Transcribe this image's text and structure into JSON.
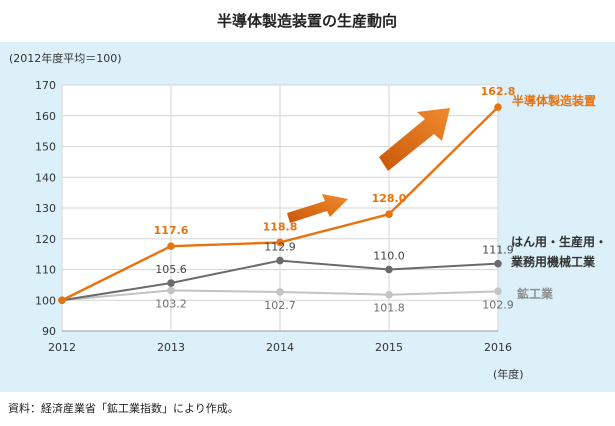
{
  "chart_data": {
    "type": "line",
    "title": "半導体製造装置の生産動向",
    "unit_note": "(2012年度平均＝100)",
    "xlabel_unit": "(年度)",
    "x": [
      "2012",
      "2013",
      "2014",
      "2015",
      "2016"
    ],
    "y_ticks": [
      "90",
      "100",
      "110",
      "120",
      "130",
      "140",
      "150",
      "160",
      "170"
    ],
    "ylim": [
      90,
      170
    ],
    "grid": true,
    "series": [
      {
        "name": "半導体製造装置",
        "color": "#e8730f",
        "values": [
          100,
          117.6,
          118.8,
          128.0,
          162.8
        ],
        "labels": [
          "",
          "117.6",
          "118.8",
          "128.0",
          "162.8"
        ]
      },
      {
        "name_lines": [
          "はん用・生産用・",
          "業務用機械工業"
        ],
        "color": "#6b6b6b",
        "values": [
          100,
          105.6,
          112.9,
          110.0,
          111.9
        ],
        "labels": [
          "",
          "105.6",
          "112.9",
          "110.0",
          "111.9"
        ]
      },
      {
        "name": "鉱工業",
        "color": "#c3c3c3",
        "label_color": "#9a9a9a",
        "values": [
          100,
          103.2,
          102.7,
          101.8,
          102.9
        ],
        "labels": [
          "",
          "103.2",
          "102.7",
          "101.8",
          "102.9"
        ]
      }
    ],
    "source": "資料：経済産業省「鉱工業指数」により作成。",
    "background_color": "#dcf0fa"
  }
}
